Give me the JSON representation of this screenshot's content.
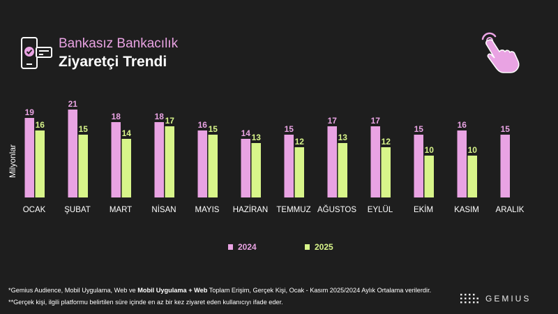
{
  "header": {
    "subtitle": "Bankasız Bankacılık",
    "title": "Ziyaretçi Trendi"
  },
  "icons": {
    "left": "phone-payment-icon",
    "right": "pointing-hand-icon"
  },
  "chart_data": {
    "type": "bar",
    "ylabel": "Milyonlar",
    "categories": [
      "OCAK",
      "ŞUBAT",
      "MART",
      "NİSAN",
      "MAYIS",
      "HAZİRAN",
      "TEMMUZ",
      "AĞUSTOS",
      "EYLÜL",
      "EKİM",
      "KASIM",
      "ARALIK"
    ],
    "series": [
      {
        "name": "2024",
        "color": "#e9a3e3",
        "values": [
          19,
          21,
          18,
          18,
          16,
          14,
          15,
          17,
          17,
          15,
          16,
          15
        ]
      },
      {
        "name": "2025",
        "color": "#d8f58a",
        "values": [
          16,
          15,
          14,
          17,
          15,
          13,
          12,
          13,
          12,
          10,
          10,
          null
        ]
      }
    ],
    "ylim": [
      0,
      22
    ],
    "grid": false,
    "legend": "bottom-center"
  },
  "legend": {
    "items": [
      {
        "label": "2024",
        "color": "#e9a3e3"
      },
      {
        "label": "2025",
        "color": "#d8f58a"
      }
    ]
  },
  "footnotes": {
    "line1_a": "*Gemius Audience, Mobil Uygulama, Web ve ",
    "line1_b": "Mobil Uygulama + Web",
    "line1_c": " Toplam Erişim, Gerçek Kişi, Ocak -  Kasım  2025/2024 Aylık Ortalama verilerdir.",
    "line2": "**Gerçek kişi, ilgili platformu belirtilen süre içinde en az bir kez ziyaret eden kullanıcıyı ifade eder."
  },
  "brand": {
    "name": "GEMIUS"
  },
  "colors": {
    "background": "#1e1e1e",
    "accent_pink": "#e9a3e3",
    "accent_green": "#d8f58a"
  }
}
